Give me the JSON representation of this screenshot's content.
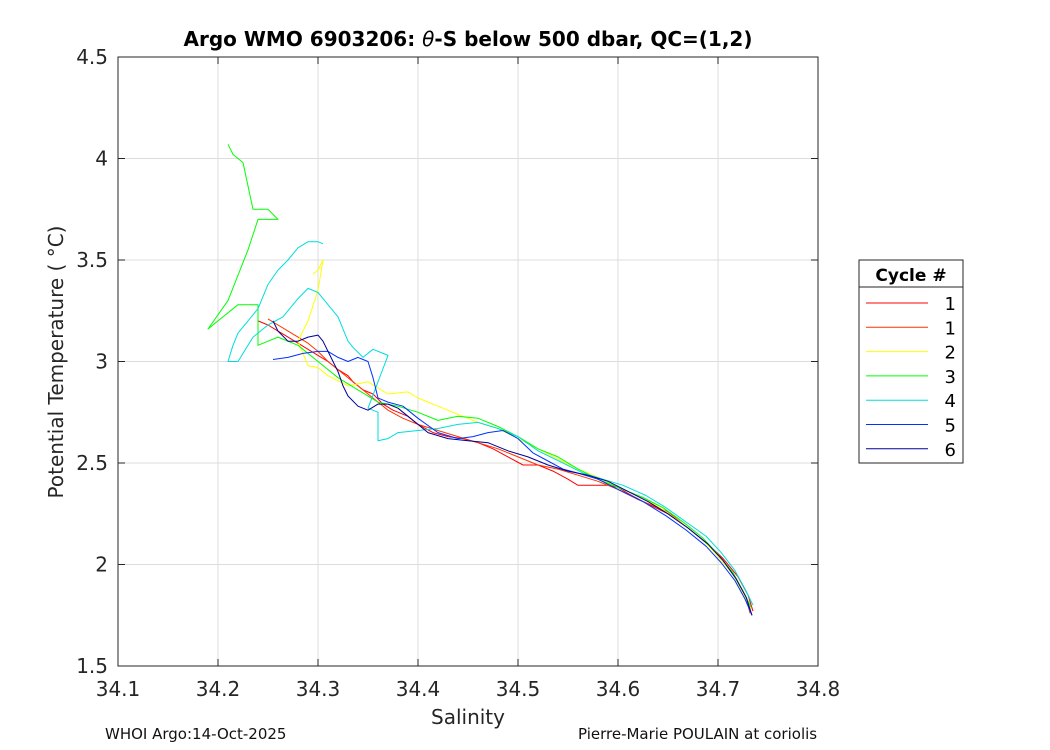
{
  "chart_data": {
    "type": "line",
    "title_prefix": "Argo WMO 6903206: ",
    "title_theta": "θ",
    "title_suffix": "-S below 500 dbar,  QC=(1,2)",
    "xlabel": "Salinity",
    "ylabel": "Potential Temperature ( °C)",
    "xlim": [
      34.1,
      34.8
    ],
    "ylim": [
      1.5,
      4.5
    ],
    "xticks": [
      "34.1",
      "34.2",
      "34.3",
      "34.4",
      "34.5",
      "34.6",
      "34.7",
      "34.8"
    ],
    "yticks": [
      "1.5",
      "2",
      "2.5",
      "3",
      "3.5",
      "4",
      "4.5"
    ],
    "grid": true,
    "legend_title": "Cycle #",
    "legend_position": "right",
    "series": [
      {
        "name": "1",
        "color": "#ff0000",
        "x": [
          34.735,
          34.73,
          34.72,
          34.705,
          34.69,
          34.67,
          34.65,
          34.625,
          34.61,
          34.6,
          34.59,
          34.575,
          34.56,
          34.55,
          34.535,
          34.52,
          34.505,
          34.49,
          34.475,
          34.46,
          34.445,
          34.43,
          34.415,
          34.4,
          34.39,
          34.375,
          34.365,
          34.355,
          34.345,
          34.335,
          34.33,
          34.32,
          34.31,
          34.3,
          34.29,
          34.28,
          34.27,
          34.26,
          34.25,
          34.24
        ],
        "y": [
          1.77,
          1.85,
          1.94,
          2.03,
          2.1,
          2.18,
          2.25,
          2.31,
          2.35,
          2.38,
          2.39,
          2.39,
          2.39,
          2.42,
          2.46,
          2.49,
          2.49,
          2.53,
          2.57,
          2.6,
          2.62,
          2.63,
          2.65,
          2.69,
          2.73,
          2.76,
          2.79,
          2.84,
          2.86,
          2.9,
          2.93,
          2.96,
          3.0,
          3.03,
          3.06,
          3.09,
          3.12,
          3.15,
          3.18,
          3.2
        ]
      },
      {
        "name": "1",
        "color": "#ff3300",
        "x": [
          34.732,
          34.728,
          34.718,
          34.705,
          34.69,
          34.67,
          34.65,
          34.62,
          34.6,
          34.58,
          34.56,
          34.54,
          34.52,
          34.5,
          34.48,
          34.46,
          34.44,
          34.42,
          34.4,
          34.385,
          34.37,
          34.36,
          34.35,
          34.34,
          34.33,
          34.32,
          34.31,
          34.3,
          34.29,
          34.28,
          34.27,
          34.26,
          34.25
        ],
        "y": [
          1.76,
          1.84,
          1.93,
          2.02,
          2.1,
          2.18,
          2.26,
          2.32,
          2.37,
          2.41,
          2.44,
          2.47,
          2.49,
          2.53,
          2.57,
          2.6,
          2.63,
          2.66,
          2.69,
          2.72,
          2.76,
          2.8,
          2.84,
          2.88,
          2.92,
          2.96,
          3.0,
          3.05,
          3.09,
          3.12,
          3.15,
          3.18,
          3.21
        ]
      },
      {
        "name": "2",
        "color": "#ffff00",
        "x": [
          34.733,
          34.725,
          34.715,
          34.7,
          34.685,
          34.665,
          34.645,
          34.625,
          34.6,
          34.58,
          34.56,
          34.54,
          34.52,
          34.5,
          34.48,
          34.46,
          34.44,
          34.42,
          34.4,
          34.39,
          34.37,
          34.35,
          34.33,
          34.31,
          34.3,
          34.29,
          34.28,
          34.29,
          34.3,
          34.305,
          34.3,
          34.295
        ],
        "y": [
          1.78,
          1.86,
          1.95,
          2.04,
          2.12,
          2.2,
          2.27,
          2.33,
          2.38,
          2.43,
          2.47,
          2.52,
          2.57,
          2.62,
          2.67,
          2.7,
          2.74,
          2.78,
          2.82,
          2.85,
          2.84,
          2.9,
          2.88,
          2.93,
          2.97,
          2.98,
          3.1,
          3.2,
          3.35,
          3.5,
          3.45,
          3.43
        ]
      },
      {
        "name": "3",
        "color": "#00ff00",
        "x": [
          34.733,
          34.725,
          34.715,
          34.7,
          34.685,
          34.665,
          34.645,
          34.625,
          34.6,
          34.58,
          34.56,
          34.54,
          34.52,
          34.5,
          34.48,
          34.46,
          34.44,
          34.42,
          34.4,
          34.38,
          34.36,
          34.34,
          34.32,
          34.3,
          34.28,
          34.26,
          34.25,
          34.24,
          34.24,
          34.22,
          34.2,
          34.19,
          34.21,
          34.23,
          34.24,
          34.26,
          34.25,
          34.235,
          34.225,
          34.22,
          34.215,
          34.21
        ],
        "y": [
          1.79,
          1.87,
          1.96,
          2.05,
          2.13,
          2.21,
          2.28,
          2.33,
          2.38,
          2.42,
          2.47,
          2.53,
          2.57,
          2.63,
          2.68,
          2.72,
          2.73,
          2.71,
          2.75,
          2.78,
          2.8,
          2.86,
          2.92,
          3.0,
          3.08,
          3.12,
          3.1,
          3.08,
          3.28,
          3.28,
          3.2,
          3.16,
          3.3,
          3.55,
          3.7,
          3.7,
          3.75,
          3.75,
          3.98,
          4.0,
          4.02,
          4.07
        ]
      },
      {
        "name": "4",
        "color": "#00dddd",
        "x": [
          34.735,
          34.727,
          34.717,
          34.703,
          34.688,
          34.668,
          34.648,
          34.628,
          34.605,
          34.585,
          34.565,
          34.545,
          34.52,
          34.5,
          34.48,
          34.46,
          34.44,
          34.42,
          34.4,
          34.38,
          34.37,
          34.36,
          34.36,
          34.35,
          34.36,
          34.37,
          34.355,
          34.345,
          34.335,
          34.33,
          34.32,
          34.31,
          34.3,
          34.29,
          34.28,
          34.265,
          34.25,
          34.235,
          34.22,
          34.21,
          34.215,
          34.22,
          34.23,
          34.24,
          34.25,
          34.26,
          34.27,
          34.28,
          34.29,
          34.3,
          34.305
        ],
        "y": [
          1.8,
          1.88,
          1.97,
          2.06,
          2.14,
          2.21,
          2.28,
          2.34,
          2.39,
          2.42,
          2.45,
          2.5,
          2.56,
          2.63,
          2.67,
          2.7,
          2.69,
          2.67,
          2.66,
          2.65,
          2.62,
          2.61,
          2.75,
          2.77,
          2.9,
          3.03,
          3.06,
          3.02,
          3.07,
          3.1,
          3.22,
          3.28,
          3.34,
          3.36,
          3.31,
          3.22,
          3.18,
          3.12,
          3.0,
          3.0,
          3.08,
          3.14,
          3.2,
          3.26,
          3.38,
          3.45,
          3.5,
          3.56,
          3.59,
          3.59,
          3.58
        ]
      },
      {
        "name": "5",
        "color": "#0033ff",
        "x": [
          34.734,
          34.727,
          34.717,
          34.703,
          34.688,
          34.668,
          34.648,
          34.625,
          34.6,
          34.58,
          34.56,
          34.545,
          34.53,
          34.515,
          34.5,
          34.485,
          34.47,
          34.455,
          34.44,
          34.42,
          34.4,
          34.385,
          34.37,
          34.36,
          34.355,
          34.35,
          34.345,
          34.34,
          34.33,
          34.32,
          34.31,
          34.3,
          34.285,
          34.27,
          34.255
        ],
        "y": [
          1.75,
          1.83,
          1.92,
          2.01,
          2.09,
          2.17,
          2.24,
          2.31,
          2.37,
          2.42,
          2.45,
          2.47,
          2.51,
          2.55,
          2.62,
          2.66,
          2.65,
          2.63,
          2.62,
          2.65,
          2.72,
          2.78,
          2.8,
          2.82,
          2.92,
          3.0,
          3.01,
          3.02,
          3.0,
          3.02,
          3.05,
          3.05,
          3.04,
          3.02,
          3.01
        ]
      },
      {
        "name": "6",
        "color": "#000099",
        "x": [
          34.734,
          34.728,
          34.718,
          34.705,
          34.69,
          34.67,
          34.65,
          34.63,
          34.61,
          34.59,
          34.57,
          34.55,
          34.53,
          34.51,
          34.49,
          34.47,
          34.45,
          34.43,
          34.41,
          34.4,
          34.39,
          34.38,
          34.37,
          34.36,
          34.35,
          34.34,
          34.33,
          34.325,
          34.32,
          34.315,
          34.31,
          34.305,
          34.3,
          34.29,
          34.28,
          34.27,
          34.26,
          34.255
        ],
        "y": [
          1.75,
          1.84,
          1.93,
          2.02,
          2.1,
          2.18,
          2.25,
          2.31,
          2.36,
          2.41,
          2.44,
          2.46,
          2.49,
          2.53,
          2.56,
          2.6,
          2.61,
          2.62,
          2.65,
          2.69,
          2.73,
          2.77,
          2.79,
          2.79,
          2.76,
          2.78,
          2.83,
          2.88,
          2.95,
          3.0,
          3.05,
          3.1,
          3.13,
          3.12,
          3.1,
          3.1,
          3.15,
          3.2
        ]
      }
    ]
  },
  "footer": {
    "left": "WHOI Argo:14-Oct-2025",
    "right": "Pierre-Marie POULAIN at coriolis"
  }
}
